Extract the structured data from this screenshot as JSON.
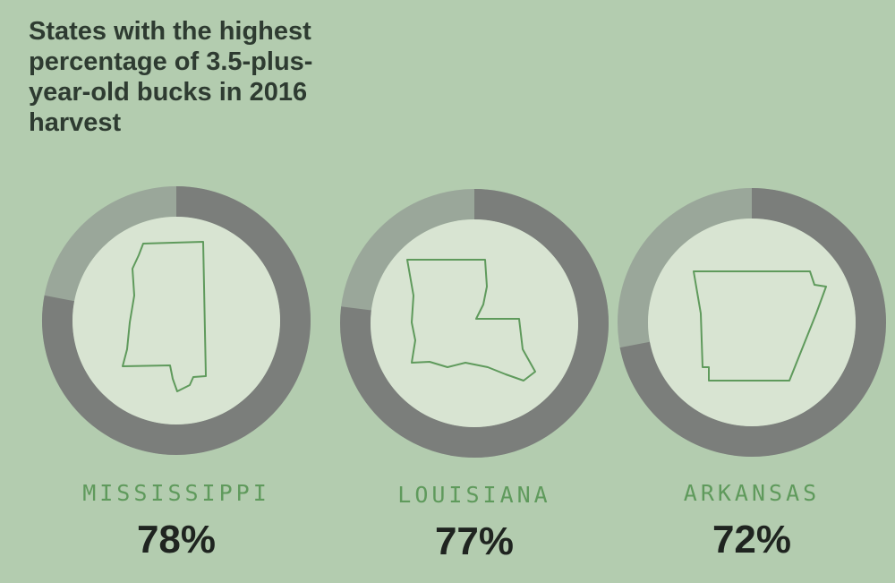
{
  "colors": {
    "background": "#b3ccaf",
    "filled": "#7b7e7b",
    "remaining": "#9aa79a",
    "inner": "#d8e4d2",
    "outline": "#5f9a5c"
  },
  "chart_data": {
    "type": "donut",
    "title": "States with the highest percentage of 3.5-plus-year-old bucks in 2016 harvest",
    "categories": [
      "MISSISSIPPI",
      "LOUISIANA",
      "ARKANSAS"
    ],
    "values": [
      78,
      77,
      72
    ],
    "value_labels": [
      "78%",
      "77%",
      "72%"
    ],
    "unit": "%"
  }
}
